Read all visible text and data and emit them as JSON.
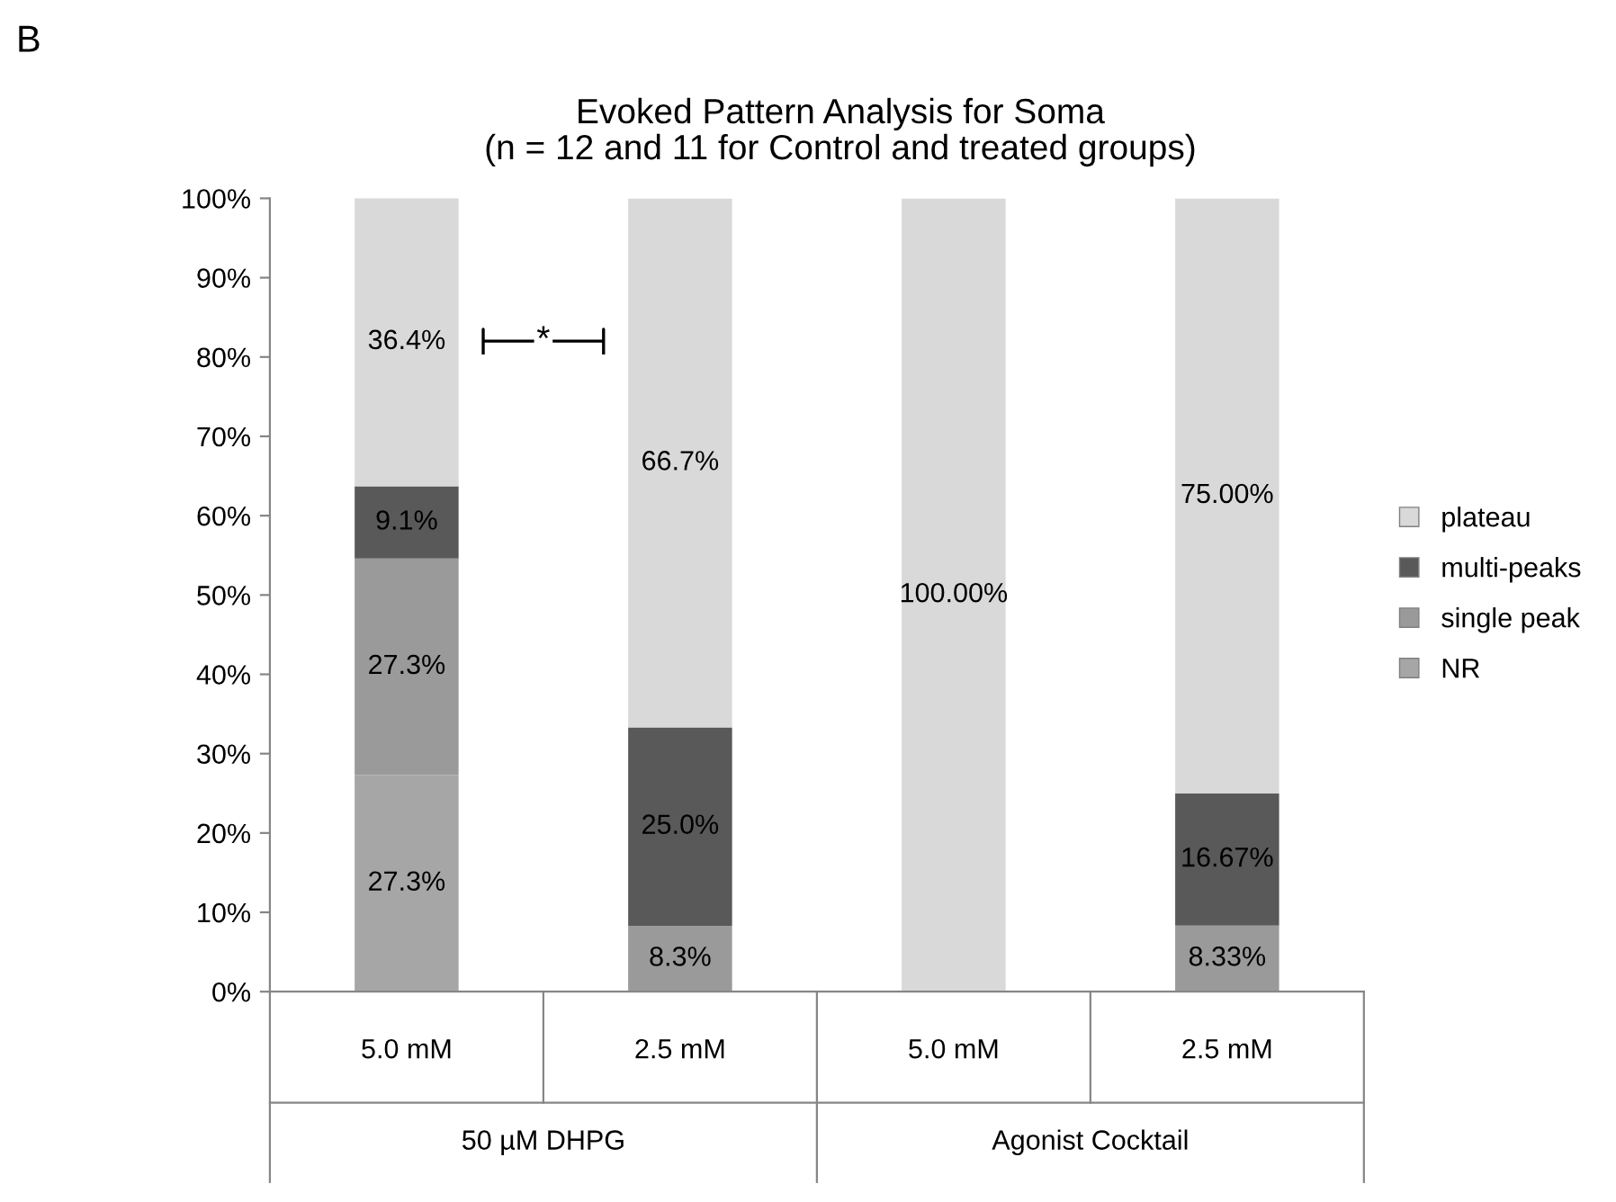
{
  "chart_data": {
    "type": "bar",
    "title": "Evoked Pattern Analysis for Soma",
    "subtitle": "(n = 12 and 11 for Control and treated groups)",
    "categories": [
      "5.0 mM",
      "2.5 mM",
      "5.0 mM",
      "2.5 mM"
    ],
    "stacked": true,
    "series": [
      {
        "name": "NR",
        "color": "#a6a6a6",
        "values": [
          27.3,
          0,
          0,
          0
        ],
        "value_labels": [
          "27.3%",
          null,
          null,
          null
        ]
      },
      {
        "name": "single peak",
        "color": "#9a9a9a",
        "values": [
          27.3,
          8.3,
          0,
          8.33
        ],
        "value_labels": [
          "27.3%",
          "8.3%",
          null,
          "8.33%"
        ]
      },
      {
        "name": "multi-peaks",
        "color": "#595959",
        "values": [
          9.1,
          25.0,
          0,
          16.67
        ],
        "value_labels": [
          "9.1%",
          "25.0%",
          null,
          "16.67%"
        ]
      },
      {
        "name": "plateau",
        "color": "#d9d9d9",
        "values": [
          36.4,
          66.7,
          100.0,
          75.0
        ],
        "value_labels": [
          "36.4%",
          "66.7%",
          "100.00%",
          "75.00%"
        ]
      }
    ],
    "ylim": [
      0,
      100
    ],
    "yticks": [
      {
        "value": 0,
        "label": "0%"
      },
      {
        "value": 10,
        "label": "10%"
      },
      {
        "value": 20,
        "label": "20%"
      },
      {
        "value": 30,
        "label": "30%"
      },
      {
        "value": 40,
        "label": "40%"
      },
      {
        "value": 50,
        "label": "50%"
      },
      {
        "value": 60,
        "label": "60%"
      },
      {
        "value": 70,
        "label": "70%"
      },
      {
        "value": 80,
        "label": "80%"
      },
      {
        "value": 90,
        "label": "90%"
      },
      {
        "value": 100,
        "label": "100%"
      }
    ],
    "grid": false,
    "legend": "right",
    "annotations": [
      "B",
      "*",
      "50 µM DHPG",
      "Agonist Cocktail"
    ]
  }
}
